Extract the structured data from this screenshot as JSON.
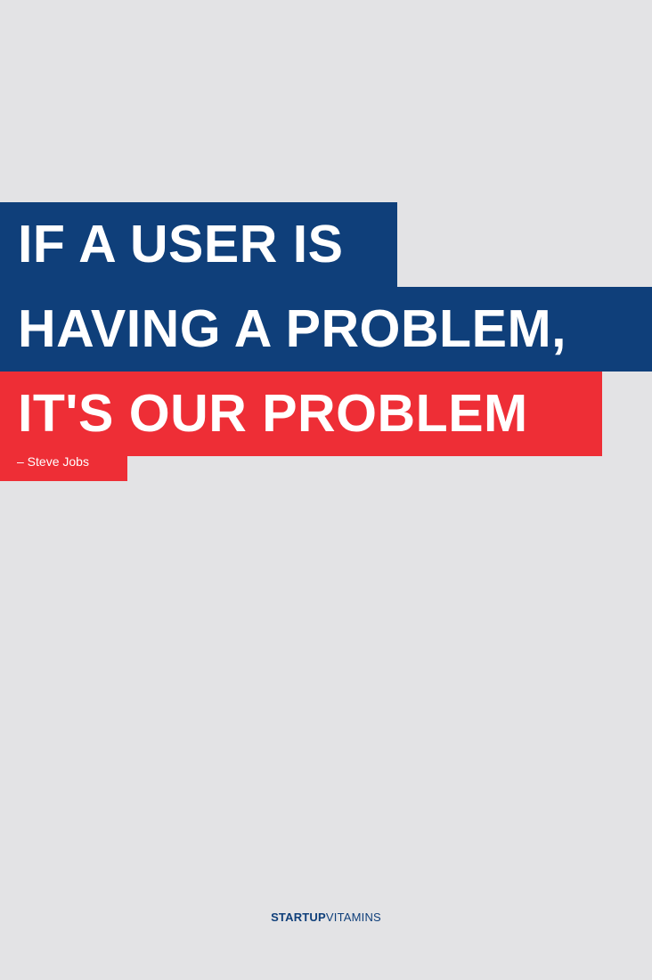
{
  "quote": {
    "lines": [
      "IF A USER IS",
      "HAVING A PROBLEM,",
      "IT'S OUR PROBLEM"
    ],
    "author": "– Steve Jobs"
  },
  "brand": {
    "bold": "STARTUP",
    "light": "VITAMINS"
  },
  "colors": {
    "background": "#e3e3e5",
    "blue": "#0f3f7a",
    "red": "#ee2e36",
    "text": "#ffffff"
  }
}
